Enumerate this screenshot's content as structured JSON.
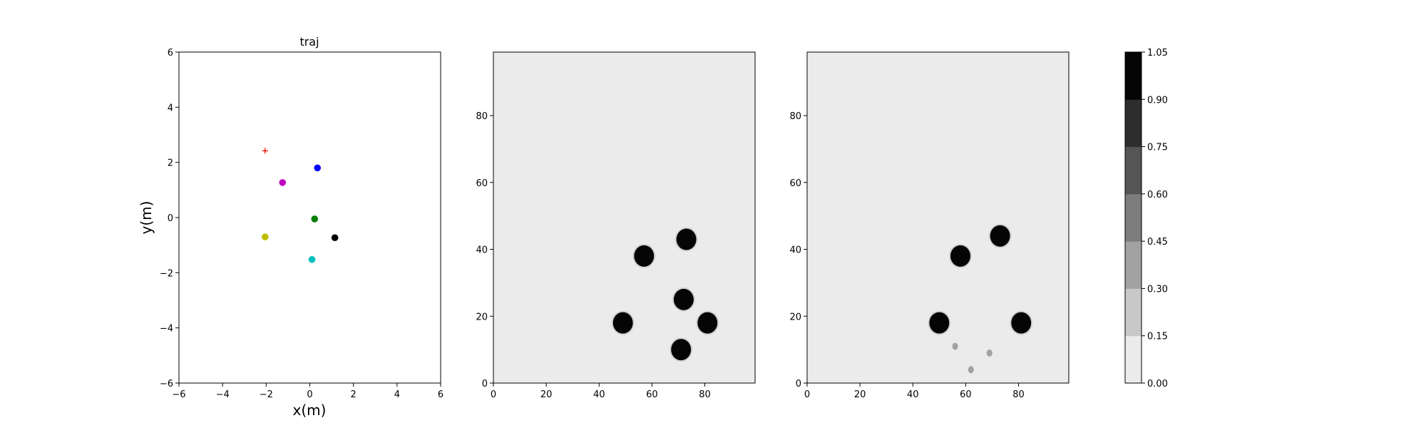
{
  "chart_data": [
    {
      "type": "scatter",
      "title": "traj",
      "xlabel": "x(m)",
      "ylabel": "y(m)",
      "xlim": [
        -6,
        6
      ],
      "ylim": [
        -6,
        6
      ],
      "xticks": [
        -6,
        -4,
        -2,
        0,
        2,
        4,
        6
      ],
      "yticks": [
        -6,
        -4,
        -2,
        0,
        2,
        4,
        6
      ],
      "grid": false,
      "points": [
        {
          "x": 0.35,
          "y": 1.8,
          "color": "#0000ff",
          "marker": "circle"
        },
        {
          "x": -1.25,
          "y": 1.27,
          "color": "#c000c0",
          "marker": "circle"
        },
        {
          "x": 0.22,
          "y": -0.05,
          "color": "#007f00",
          "marker": "circle"
        },
        {
          "x": -2.05,
          "y": -0.7,
          "color": "#bfbf00",
          "marker": "circle"
        },
        {
          "x": 1.15,
          "y": -0.73,
          "color": "#000000",
          "marker": "circle"
        },
        {
          "x": 0.1,
          "y": -1.52,
          "color": "#00bfbf",
          "marker": "circle"
        },
        {
          "x": -2.05,
          "y": 2.42,
          "color": "#ff0000",
          "marker": "plus"
        }
      ]
    },
    {
      "type": "heatmap",
      "title": "",
      "xlim": [
        0,
        99
      ],
      "ylim": [
        0,
        99
      ],
      "xticks": [
        0,
        20,
        40,
        60,
        80
      ],
      "yticks": [
        0,
        20,
        40,
        60,
        80
      ],
      "background_value": 0.07,
      "blobs": [
        {
          "x": 73,
          "y": 43,
          "value": 1.0
        },
        {
          "x": 57,
          "y": 38,
          "value": 1.0
        },
        {
          "x": 72,
          "y": 25,
          "value": 1.0
        },
        {
          "x": 49,
          "y": 18,
          "value": 1.0
        },
        {
          "x": 81,
          "y": 18,
          "value": 1.0
        },
        {
          "x": 71,
          "y": 10,
          "value": 1.0
        }
      ]
    },
    {
      "type": "heatmap",
      "title": "",
      "xlim": [
        0,
        99
      ],
      "ylim": [
        0,
        99
      ],
      "xticks": [
        0,
        20,
        40,
        60,
        80
      ],
      "yticks": [
        0,
        20,
        40,
        60,
        80
      ],
      "background_value": 0.07,
      "blobs": [
        {
          "x": 73,
          "y": 44,
          "value": 1.0
        },
        {
          "x": 58,
          "y": 38,
          "value": 1.0
        },
        {
          "x": 50,
          "y": 18,
          "value": 1.0
        },
        {
          "x": 81,
          "y": 18,
          "value": 1.0
        },
        {
          "x": 56,
          "y": 11,
          "value": 0.3
        },
        {
          "x": 69,
          "y": 9,
          "value": 0.3
        },
        {
          "x": 62,
          "y": 4,
          "value": 0.3
        }
      ]
    },
    {
      "type": "colorbar",
      "ticks": [
        "0.00",
        "0.15",
        "0.30",
        "0.45",
        "0.60",
        "0.75",
        "0.90",
        "1.05"
      ],
      "range": [
        0,
        1.05
      ],
      "levels": [
        "#ebebeb",
        "#c8c8c8",
        "#a2a2a2",
        "#7d7d7d",
        "#555555",
        "#2d2d2d",
        "#050505"
      ]
    }
  ]
}
